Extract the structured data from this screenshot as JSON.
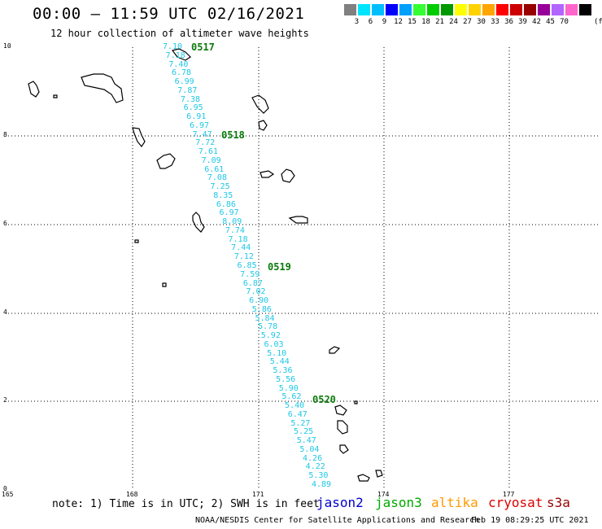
{
  "header": {
    "title": "00:00 – 11:59 UTC 02/16/2021",
    "subtitle": "12 hour collection of altimeter wave heights"
  },
  "color_scale": {
    "colors": [
      "#808080",
      "#00e5ff",
      "#00bfff",
      "#0000ff",
      "#00a0ff",
      "#33ff33",
      "#00cc00",
      "#009900",
      "#ffff00",
      "#ffd200",
      "#ffa500",
      "#ff0000",
      "#cc0000",
      "#990000",
      "#990099",
      "#b266ff",
      "#ff66cc",
      "#000000"
    ],
    "labels": [
      "3",
      "6",
      "9",
      "12",
      "15",
      "18",
      "21",
      "24",
      "27",
      "30",
      "33",
      "36",
      "39",
      "42",
      "45",
      "70"
    ],
    "unit": "(ft)"
  },
  "axes": {
    "y_ticks": [
      "10",
      "8",
      "6",
      "4",
      "2",
      "0"
    ],
    "x_ticks": [
      "165",
      "168",
      "171",
      "174",
      "177"
    ]
  },
  "track": {
    "values": [
      "7.10",
      "7.18",
      "7.40",
      "6.78",
      "6.99",
      "7.87",
      "7.38",
      "6.95",
      "6.91",
      "6.97",
      "7.47",
      "7.72",
      "7.61",
      "7.09",
      "6.61",
      "7.08",
      "7.25",
      "8.35",
      "6.86",
      "6.97",
      "8.09",
      "7.74",
      "7.18",
      "7.44",
      "7.12",
      "6.85",
      "7.59",
      "6.87",
      "7.02",
      "6.90",
      "5.86",
      "5.84",
      "5.78",
      "5.92",
      "6.03",
      "5.10",
      "5.44",
      "5.36",
      "5.56",
      "5.90",
      "5.62",
      "5.40",
      "6.47",
      "5.27",
      "5.25",
      "5.47",
      "5.04",
      "4.26",
      "4.22",
      "5.30",
      "4.89"
    ],
    "times": [
      {
        "label": "0517"
      },
      {
        "label": "0518"
      },
      {
        "label": "0519"
      },
      {
        "label": "0520"
      }
    ]
  },
  "footer": {
    "note": "note: 1) Time is in UTC; 2) SWH is in feet",
    "satellites": [
      {
        "name": "jason2",
        "color": "#0000cc"
      },
      {
        "name": "jason3",
        "color": "#00aa00"
      },
      {
        "name": "altika",
        "color": "#ff9900"
      },
      {
        "name": "cryosat",
        "color": "#dd0000"
      },
      {
        "name": "s3a",
        "color": "#990000"
      }
    ],
    "credit": "NOAA/NESDIS Center for Satellite Applications and Research",
    "timestamp": "Feb 19 08:29:25 UTC 2021"
  }
}
